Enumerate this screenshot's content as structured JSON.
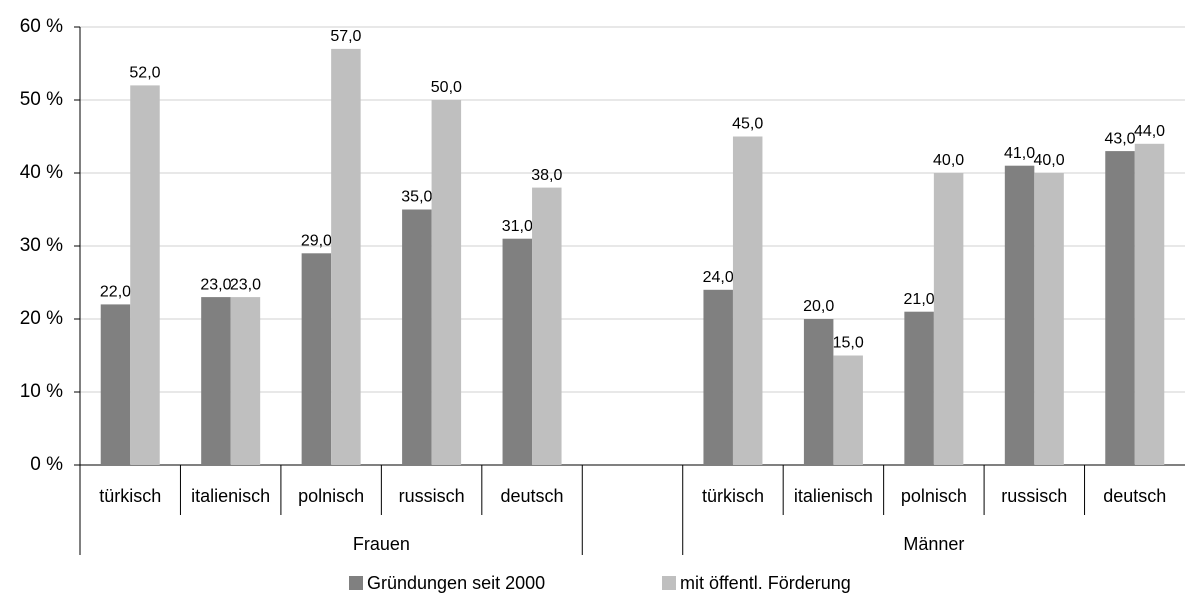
{
  "chart_data": {
    "type": "bar",
    "groups": [
      {
        "name": "Frauen",
        "categories": [
          "türkisch",
          "italienisch",
          "polnisch",
          "russisch",
          "deutsch",
          null
        ]
      },
      {
        "name": "Männer",
        "categories": [
          "türkisch",
          "italienisch",
          "polnisch",
          "russisch",
          "deutsch"
        ]
      }
    ],
    "series": [
      {
        "name": "Gründungen seit 2000",
        "color": "#808080",
        "values": [
          22,
          23,
          29,
          35,
          31,
          null,
          24,
          20,
          21,
          41,
          43
        ],
        "value_labels": [
          "22,0",
          "23,0",
          "29,0",
          "35,0",
          "31,0",
          null,
          "24,0",
          "20,0",
          "21,0",
          "41,0",
          "43,0"
        ]
      },
      {
        "name": "mit öffentl. Förderung",
        "color": "#bfbfbf",
        "values": [
          52,
          23,
          57,
          50,
          38,
          null,
          45,
          15,
          40,
          40,
          44
        ],
        "value_labels": [
          "52,0",
          "23,0",
          "57,0",
          "50,0",
          "38,0",
          null,
          "45,0",
          "15,0",
          "40,0",
          "40,0",
          "44,0"
        ]
      }
    ],
    "ylim": [
      0,
      60
    ],
    "yticks": [
      {
        "value": 0,
        "label": "0 %"
      },
      {
        "value": 10,
        "label": "10 %"
      },
      {
        "value": 20,
        "label": "20 %"
      },
      {
        "value": 30,
        "label": "30 %"
      },
      {
        "value": 40,
        "label": "40 %"
      },
      {
        "value": 50,
        "label": "50 %"
      },
      {
        "value": 60,
        "label": "60 %"
      }
    ],
    "grid": true,
    "legend": "bottom"
  }
}
